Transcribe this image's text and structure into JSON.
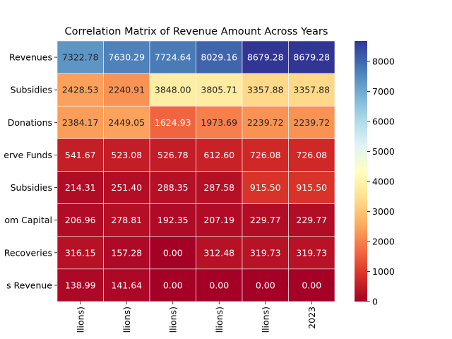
{
  "chart_data": {
    "type": "heatmap",
    "title": "Correlation Matrix of Revenue Amount Across Years",
    "row_labels": [
      "Revenues",
      "Subsidies",
      "Donations",
      "erve Funds",
      "Subsidies",
      "om Capital",
      "Recoveries",
      "s Revenue"
    ],
    "col_labels": [
      "llions)",
      "llions)",
      "llions)",
      "llions)",
      "llions)",
      "2023"
    ],
    "values": [
      [
        7322.78,
        7630.29,
        7724.64,
        8029.16,
        8679.28,
        8679.28
      ],
      [
        2428.53,
        2240.91,
        3848.0,
        3805.71,
        3357.88,
        3357.88
      ],
      [
        2384.17,
        2449.05,
        1624.93,
        1973.69,
        2239.72,
        2239.72
      ],
      [
        541.67,
        523.08,
        526.78,
        612.6,
        726.08,
        726.08
      ],
      [
        214.31,
        251.4,
        288.35,
        287.58,
        915.5,
        915.5
      ],
      [
        206.96,
        278.81,
        192.35,
        207.19,
        229.77,
        229.77
      ],
      [
        316.15,
        157.28,
        0.0,
        312.48,
        319.73,
        319.73
      ],
      [
        138.99,
        141.64,
        0.0,
        0.0,
        0.0,
        0.0
      ]
    ],
    "colormap": "RdYlBu",
    "vmin": 0,
    "vmax": 8679.28,
    "colorbar_ticks": [
      0,
      1000,
      2000,
      3000,
      4000,
      5000,
      6000,
      7000,
      8000
    ],
    "annotation_format": "0.00"
  }
}
